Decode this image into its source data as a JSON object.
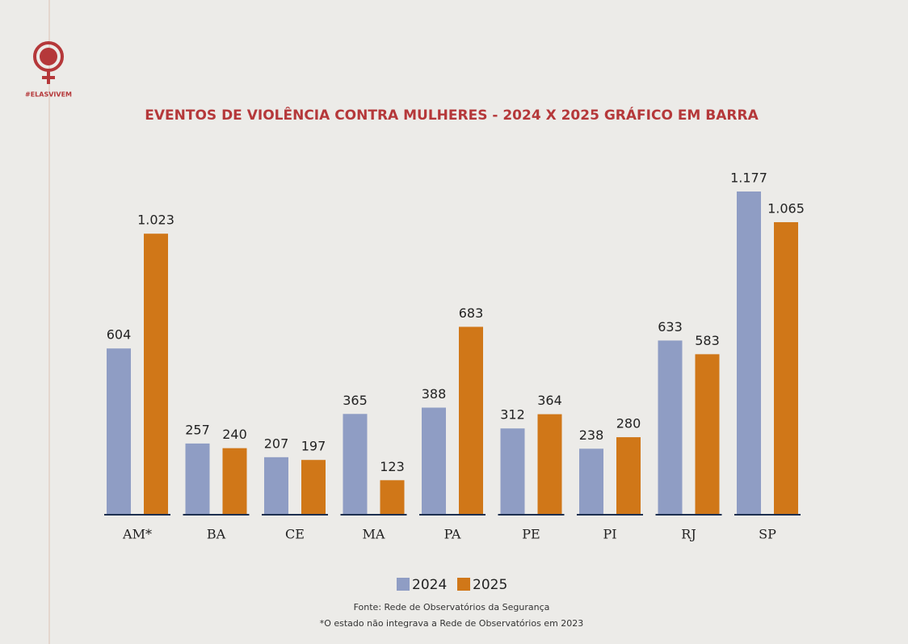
{
  "logo_text": "#ELASVIVEM",
  "chart_data": {
    "type": "bar",
    "title": "EVENTOS DE VIOLÊNCIA CONTRA MULHERES - 2024 X 2025 GRÁFICO EM BARRA",
    "categories": [
      "AM*",
      "BA",
      "CE",
      "MA",
      "PA",
      "PE",
      "PI",
      "RJ",
      "SP"
    ],
    "series": [
      {
        "name": "2024",
        "color": "#8f9dc4",
        "values": [
          604,
          257,
          207,
          365,
          388,
          312,
          238,
          633,
          1177
        ],
        "value_labels": [
          "604",
          "257",
          "207",
          "365",
          "388",
          "312",
          "238",
          "633",
          "1.177"
        ]
      },
      {
        "name": "2025",
        "color": "#d07718",
        "values": [
          1023,
          240,
          197,
          123,
          683,
          364,
          280,
          583,
          1065
        ],
        "value_labels": [
          "1.023",
          "240",
          "197",
          "123",
          "683",
          "364",
          "280",
          "583",
          "1.065"
        ]
      }
    ],
    "source": "Fonte: Rede de Observatórios da Segurança",
    "note": "*O estado não integrava a Rede de Observatórios em 2023"
  }
}
